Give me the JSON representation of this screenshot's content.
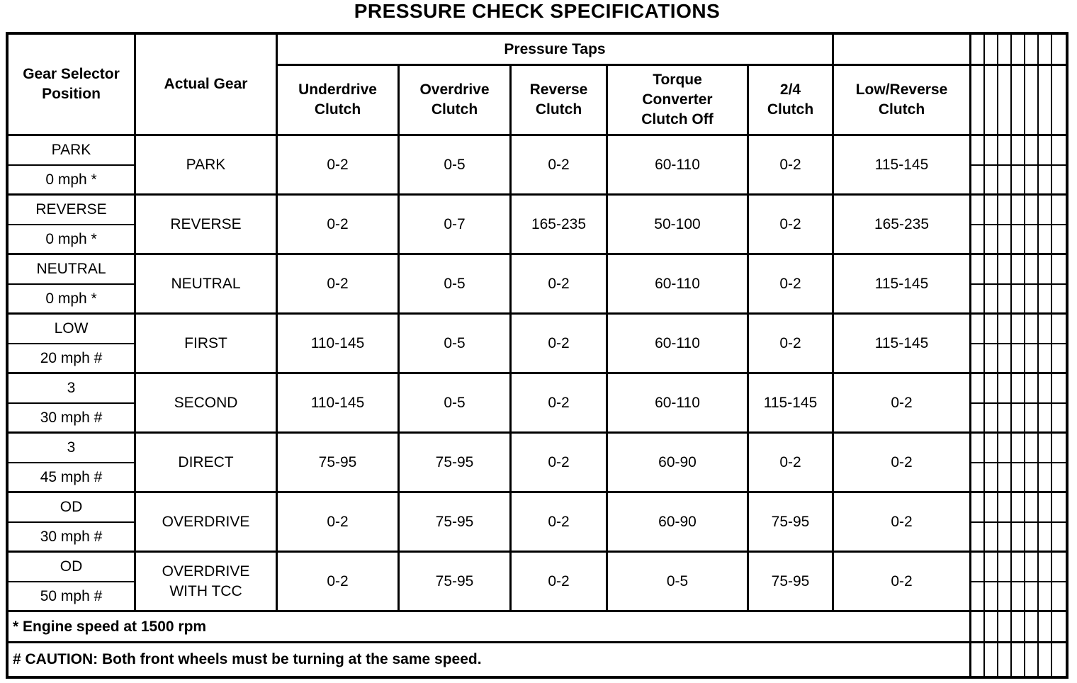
{
  "title": "PRESSURE CHECK SPECIFICATIONS",
  "colors": {
    "ink": "#000000",
    "paper": "#ffffff"
  },
  "table": {
    "header": {
      "gear_selector_position": "Gear Selector\nPosition",
      "actual_gear": "Actual Gear",
      "pressure_taps": "Pressure Taps",
      "columns": [
        "Underdrive\nClutch",
        "Overdrive\nClutch",
        "Reverse\nClutch",
        "Torque\nConverter\nClutch Off",
        "2/4\nClutch",
        "Low/Reverse\nClutch"
      ]
    },
    "rows": [
      {
        "selector_position": "PARK",
        "speed": "0 mph *",
        "actual_gear": "PARK",
        "values": [
          "0-2",
          "0-5",
          "0-2",
          "60-110",
          "0-2",
          "115-145"
        ]
      },
      {
        "selector_position": "REVERSE",
        "speed": "0 mph *",
        "actual_gear": "REVERSE",
        "values": [
          "0-2",
          "0-7",
          "165-235",
          "50-100",
          "0-2",
          "165-235"
        ]
      },
      {
        "selector_position": "NEUTRAL",
        "speed": "0 mph *",
        "actual_gear": "NEUTRAL",
        "values": [
          "0-2",
          "0-5",
          "0-2",
          "60-110",
          "0-2",
          "115-145"
        ]
      },
      {
        "selector_position": "LOW",
        "speed": "20 mph #",
        "actual_gear": "FIRST",
        "values": [
          "110-145",
          "0-5",
          "0-2",
          "60-110",
          "0-2",
          "115-145"
        ]
      },
      {
        "selector_position": "3",
        "speed": "30 mph #",
        "actual_gear": "SECOND",
        "values": [
          "110-145",
          "0-5",
          "0-2",
          "60-110",
          "115-145",
          "0-2"
        ]
      },
      {
        "selector_position": "3",
        "speed": "45 mph #",
        "actual_gear": "DIRECT",
        "values": [
          "75-95",
          "75-95",
          "0-2",
          "60-90",
          "0-2",
          "0-2"
        ]
      },
      {
        "selector_position": "OD",
        "speed": "30 mph #",
        "actual_gear": "OVERDRIVE",
        "values": [
          "0-2",
          "75-95",
          "0-2",
          "60-90",
          "75-95",
          "0-2"
        ]
      },
      {
        "selector_position": "OD",
        "speed": "50 mph #",
        "actual_gear": "OVERDRIVE\nWITH TCC",
        "values": [
          "0-2",
          "75-95",
          "0-2",
          "0-5",
          "75-95",
          "0-2"
        ]
      }
    ],
    "footnotes": [
      "* Engine speed at 1500 rpm",
      "# CAUTION: Both front wheels must be turning at the same speed."
    ]
  }
}
